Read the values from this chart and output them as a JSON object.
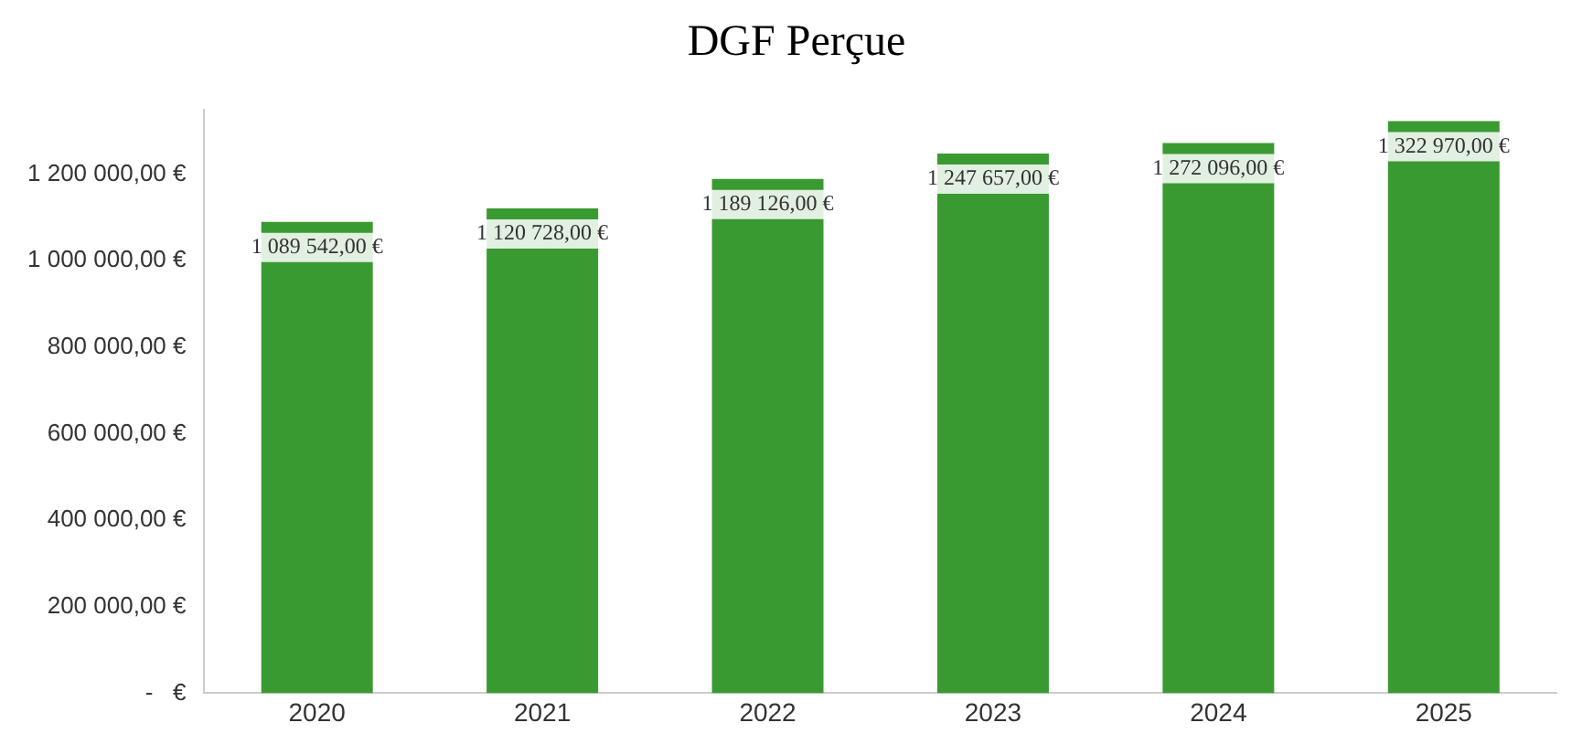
{
  "chart_data": {
    "type": "bar",
    "title": "DGF Perçue",
    "categories": [
      "2020",
      "2021",
      "2022",
      "2023",
      "2024",
      "2025"
    ],
    "values": [
      1089542,
      1120728,
      1189126,
      1247657,
      1272096,
      1322970
    ],
    "value_labels": [
      "1 089 542,00 €",
      "1 120 728,00 €",
      "1 189 126,00 €",
      "1 247 657,00 €",
      "1 272 096,00 €",
      "1 322 970,00 €"
    ],
    "color": "#3a9a32",
    "ylim": [
      0,
      1350000
    ],
    "yticks": [
      {
        "value": 0,
        "label": "-   €"
      },
      {
        "value": 200000,
        "label": "200 000,00 €"
      },
      {
        "value": 400000,
        "label": "400 000,00 €"
      },
      {
        "value": 600000,
        "label": "600 000,00 €"
      },
      {
        "value": 800000,
        "label": "800 000,00 €"
      },
      {
        "value": 1000000,
        "label": "1 000 000,00 €"
      },
      {
        "value": 1200000,
        "label": "1 200 000,00 €"
      }
    ],
    "grid": false,
    "legend": false
  }
}
